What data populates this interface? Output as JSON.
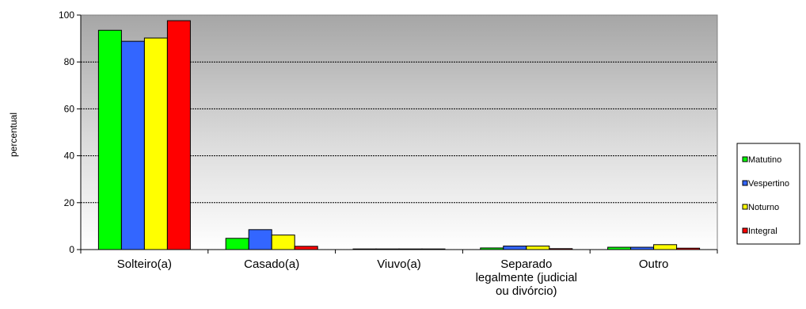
{
  "chart_data": {
    "type": "bar",
    "ylabel": "percentual",
    "ylim": [
      0,
      100
    ],
    "yticks": [
      0,
      20,
      40,
      60,
      80,
      100
    ],
    "grid": true,
    "legend_position": "right",
    "categories": [
      [
        "Solteiro(a)"
      ],
      [
        "Casado(a)"
      ],
      [
        "Viuvo(a)"
      ],
      [
        "Separado",
        "legalmente (judicial",
        "ou divórcio)"
      ],
      [
        "Outro"
      ]
    ],
    "series": [
      {
        "name": "Matutino",
        "color": "#00ff00",
        "values": [
          93.5,
          4.8,
          0.1,
          0.7,
          1.0
        ]
      },
      {
        "name": "Vespertino",
        "color": "#3366ff",
        "values": [
          88.8,
          8.5,
          0.0,
          1.5,
          1.0
        ]
      },
      {
        "name": "Noturno",
        "color": "#ffff00",
        "values": [
          90.2,
          6.2,
          0.0,
          1.5,
          2.1
        ]
      },
      {
        "name": "Integral",
        "color": "#ff0000",
        "values": [
          97.6,
          1.4,
          0.0,
          0.4,
          0.6
        ]
      }
    ]
  }
}
